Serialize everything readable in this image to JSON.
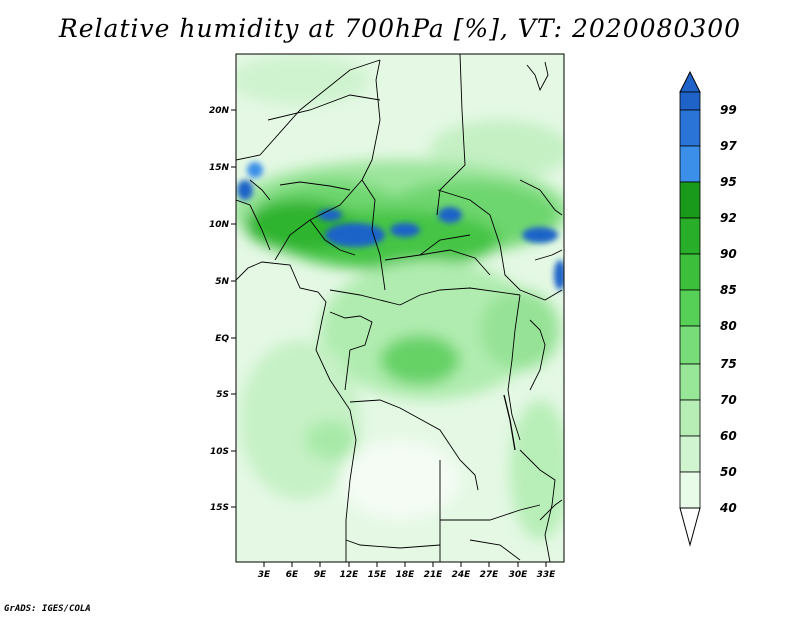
{
  "title": "Relative humidity at 700hPa [%], VT: 2020080300",
  "credit": "GrADS: IGES/COLA",
  "map": {
    "lat_labels": [
      "20N",
      "15N",
      "10N",
      "5N",
      "EQ",
      "5S",
      "10S",
      "15S"
    ],
    "lon_labels": [
      "3E",
      "6E",
      "9E",
      "12E",
      "15E",
      "18E",
      "21E",
      "24E",
      "27E",
      "30E",
      "33E"
    ]
  },
  "colorbar": {
    "levels": [
      "99",
      "97",
      "95",
      "92",
      "90",
      "85",
      "80",
      "75",
      "70",
      "60",
      "50",
      "40"
    ],
    "colors": [
      "#1f63c8",
      "#3b8fe8",
      "#1a9a1a",
      "#28ae28",
      "#3cc03c",
      "#56d056",
      "#78dc78",
      "#98e698",
      "#b6eeb6",
      "#d0f4d0",
      "#e8fae8",
      "#ffffff"
    ]
  }
}
